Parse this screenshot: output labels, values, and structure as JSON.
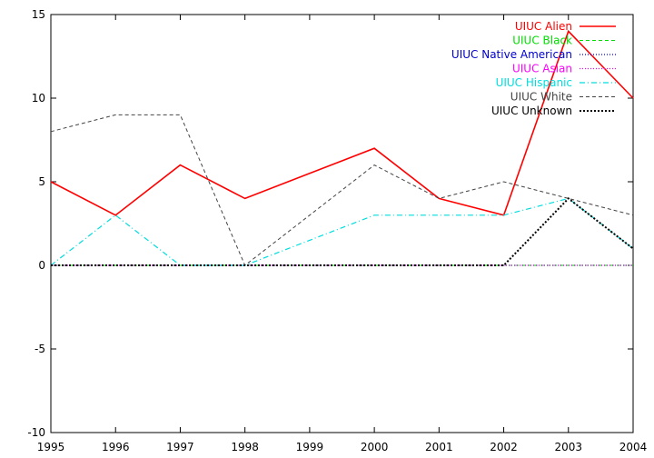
{
  "chart_data": {
    "type": "line",
    "title": "",
    "xlabel": "",
    "ylabel": "",
    "xlim": [
      1995,
      2004
    ],
    "ylim": [
      -10,
      15
    ],
    "x": [
      1995,
      1996,
      1997,
      1998,
      1999,
      2000,
      2001,
      2002,
      2003,
      2004
    ],
    "x_ticks": [
      "1995",
      "1996",
      "1997",
      "1998",
      "1999",
      "2000",
      "2001",
      "2002",
      "2003",
      "2004"
    ],
    "y_ticks": [
      "-10",
      "-5",
      "0",
      "5",
      "10",
      "15"
    ],
    "grid": false,
    "legend_position": "top-right",
    "series": [
      {
        "name": "UIUC Alien",
        "color": "#ff0000",
        "dash": "solid",
        "values": [
          5,
          3,
          6,
          4,
          5.5,
          7,
          4,
          3,
          14,
          10
        ]
      },
      {
        "name": "UIUC Black",
        "color": "#00dd00",
        "dash": "dashed",
        "values": [
          0,
          0,
          0,
          0,
          0,
          0,
          0,
          0,
          0,
          0
        ]
      },
      {
        "name": "UIUC Native American",
        "color": "#0000cc",
        "dash": "dotted",
        "values": [
          0,
          0,
          0,
          0,
          0,
          0,
          0,
          0,
          0,
          0
        ]
      },
      {
        "name": "UIUC Asian",
        "color": "#ff00ff",
        "dash": "dotted",
        "values": [
          0,
          0,
          0,
          0,
          0,
          0,
          0,
          0,
          0,
          0
        ]
      },
      {
        "name": "UIUC Hispanic",
        "color": "#00dddd",
        "dash": "dashdot",
        "values": [
          0,
          3,
          0,
          0,
          1.5,
          3,
          3,
          3,
          4,
          1
        ]
      },
      {
        "name": "UIUC White",
        "color": "#444444",
        "dash": "dashed",
        "values": [
          8,
          9,
          9,
          0,
          3,
          6,
          4,
          5,
          4,
          3
        ]
      },
      {
        "name": "UIUC Unknown",
        "color": "#000000",
        "dash": "dotted-bold",
        "values": [
          0,
          0,
          0,
          0,
          0,
          0,
          0,
          0,
          4,
          1
        ]
      }
    ]
  }
}
